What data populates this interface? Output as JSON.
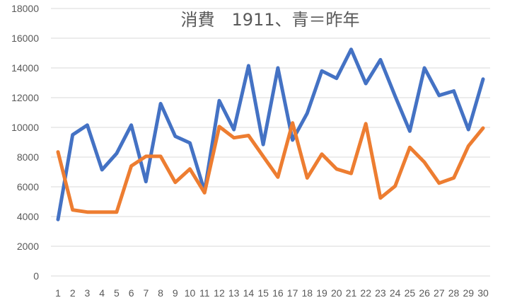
{
  "chart_data": {
    "type": "line",
    "title": "消費　1911、青＝昨年",
    "xlabel": "",
    "ylabel": "",
    "x": [
      1,
      2,
      3,
      4,
      5,
      6,
      7,
      8,
      9,
      10,
      11,
      12,
      13,
      14,
      15,
      16,
      17,
      18,
      19,
      20,
      21,
      22,
      23,
      24,
      25,
      26,
      27,
      28,
      29,
      30
    ],
    "ylim": [
      0,
      18000
    ],
    "yticks": [
      0,
      2000,
      4000,
      6000,
      8000,
      10000,
      12000,
      14000,
      16000,
      18000
    ],
    "grid": true,
    "legend": "none",
    "series": [
      {
        "color": "#4472c4",
        "values": [
          3800,
          9500,
          10150,
          7150,
          8250,
          10150,
          6350,
          11600,
          9400,
          8950,
          5700,
          11800,
          9850,
          14150,
          8850,
          14000,
          9150,
          10950,
          13800,
          13300,
          15250,
          12950,
          14550,
          12100,
          9750,
          14000,
          12150,
          12450,
          9850,
          13250
        ]
      },
      {
        "color": "#ed7d31",
        "values": [
          8350,
          4450,
          4300,
          4300,
          4300,
          7400,
          8050,
          8050,
          6300,
          7200,
          5600,
          10050,
          9300,
          9450,
          8050,
          6650,
          10300,
          6600,
          8200,
          7200,
          6900,
          10250,
          5250,
          6050,
          8650,
          7650,
          6250,
          6600,
          8750,
          9950
        ]
      }
    ]
  }
}
